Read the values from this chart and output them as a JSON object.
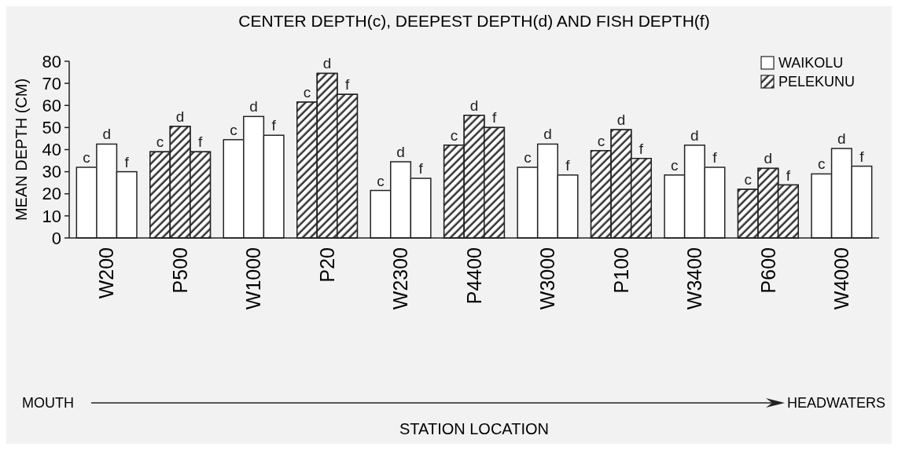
{
  "chart_data": {
    "type": "bar",
    "title": "CENTER DEPTH(c), DEEPEST DEPTH(d) AND FISH DEPTH(f)",
    "ylabel": "MEAN DEPTH (CM)",
    "categories": [
      "W200",
      "P500",
      "W1000",
      "P20",
      "W2300",
      "P4400",
      "W3000",
      "P100",
      "W3400",
      "P600",
      "W4000"
    ],
    "series": [
      {
        "name": "WAIKOLU",
        "color": "#ffffff",
        "values": [
          32,
          null,
          44.5,
          null,
          21.5,
          null,
          32,
          null,
          28.5,
          null,
          29
        ],
        "value_labels": [
          "c",
          null,
          "c",
          null,
          "c",
          null,
          "c",
          null,
          "c",
          null,
          "c"
        ]
      },
      {
        "color": "#ffffff",
        "values": [
          42.5,
          null,
          55,
          null,
          34.5,
          null,
          42.5,
          null,
          42,
          null,
          40.5
        ],
        "value_labels": [
          "d",
          null,
          "d",
          null,
          "d",
          null,
          "d",
          null,
          "d",
          null,
          "d"
        ]
      },
      {
        "color": "#ffffff",
        "values": [
          30,
          null,
          46.5,
          null,
          27,
          null,
          28.5,
          null,
          32,
          null,
          32.5
        ],
        "value_labels": [
          "f",
          null,
          "f",
          null,
          "f",
          null,
          "f",
          null,
          "f",
          null,
          "f"
        ]
      },
      {
        "name": "PELEKUNU",
        "color": "#333333",
        "values": [
          null,
          39,
          null,
          61.5,
          null,
          42,
          null,
          39.5,
          null,
          22,
          null
        ],
        "value_labels": [
          null,
          "c",
          null,
          "c",
          null,
          "c",
          null,
          "c",
          null,
          "c",
          null
        ]
      },
      {
        "color": "#333333",
        "values": [
          null,
          50.5,
          null,
          74.5,
          null,
          55.5,
          null,
          49,
          null,
          31.5,
          null
        ],
        "value_labels": [
          null,
          "d",
          null,
          "d",
          null,
          "d",
          null,
          "d",
          null,
          "d",
          null
        ]
      },
      {
        "color": "#333333",
        "values": [
          null,
          39,
          null,
          65,
          null,
          50,
          null,
          36,
          null,
          24,
          null
        ],
        "value_labels": [
          null,
          "f",
          null,
          "f",
          null,
          "f",
          null,
          "f",
          null,
          "f",
          null
        ]
      }
    ],
    "ylim": [
      0,
      80
    ],
    "yticks": [
      0,
      10,
      20,
      30,
      40,
      50,
      60,
      70,
      80
    ],
    "grid": false,
    "legend": "top right",
    "annotations": [
      "MOUTH",
      "HEADWATERS",
      "STATION LOCATION"
    ]
  }
}
